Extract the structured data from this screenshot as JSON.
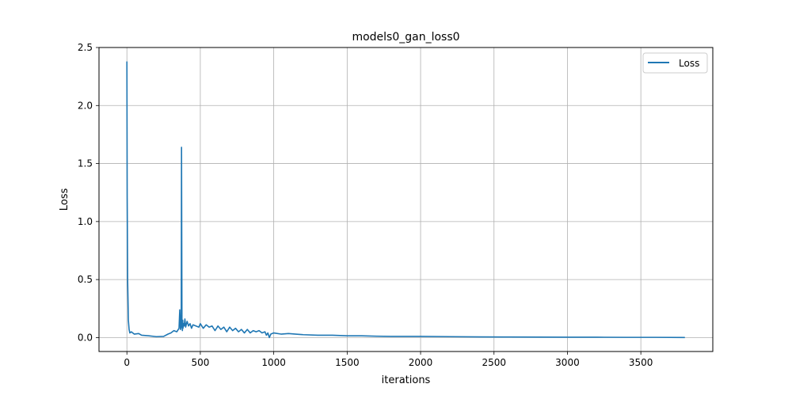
{
  "chart_data": {
    "type": "line",
    "title": "models0_gan_loss0",
    "xlabel": "iterations",
    "ylabel": "Loss",
    "xlim": [
      -190,
      3990
    ],
    "ylim": [
      -0.12,
      2.5
    ],
    "xticks": [
      0,
      500,
      1000,
      1500,
      2000,
      2500,
      3000,
      3500
    ],
    "yticks": [
      0.0,
      0.5,
      1.0,
      1.5,
      2.0,
      2.5
    ],
    "xtick_labels": [
      "0",
      "500",
      "1000",
      "1500",
      "2000",
      "2500",
      "3000",
      "3500"
    ],
    "ytick_labels": [
      "0.0",
      "0.5",
      "1.0",
      "1.5",
      "2.0",
      "2.5"
    ],
    "grid": true,
    "legend_position": "top-right",
    "series": [
      {
        "name": "Loss",
        "color": "#1f77b4",
        "x": [
          0,
          2,
          5,
          10,
          15,
          20,
          30,
          50,
          80,
          100,
          150,
          200,
          250,
          280,
          300,
          320,
          340,
          355,
          360,
          365,
          370,
          372,
          375,
          378,
          380,
          382,
          385,
          390,
          395,
          400,
          410,
          420,
          430,
          440,
          450,
          470,
          490,
          500,
          520,
          540,
          560,
          580,
          600,
          620,
          640,
          660,
          680,
          700,
          720,
          740,
          760,
          780,
          800,
          820,
          840,
          860,
          880,
          900,
          920,
          940,
          950,
          960,
          970,
          980,
          1000,
          1050,
          1100,
          1150,
          1200,
          1300,
          1400,
          1500,
          1600,
          1700,
          1800,
          1900,
          2000,
          2200,
          2400,
          2600,
          2800,
          3000,
          3200,
          3400,
          3600,
          3800
        ],
        "y": [
          2.38,
          1.2,
          0.5,
          0.15,
          0.07,
          0.04,
          0.05,
          0.03,
          0.035,
          0.02,
          0.015,
          0.008,
          0.01,
          0.03,
          0.04,
          0.06,
          0.05,
          0.08,
          0.24,
          0.07,
          0.1,
          1.64,
          0.12,
          0.06,
          0.15,
          0.08,
          0.12,
          0.1,
          0.16,
          0.09,
          0.14,
          0.1,
          0.12,
          0.08,
          0.11,
          0.1,
          0.09,
          0.12,
          0.08,
          0.11,
          0.09,
          0.1,
          0.06,
          0.1,
          0.07,
          0.09,
          0.05,
          0.09,
          0.06,
          0.08,
          0.05,
          0.07,
          0.04,
          0.07,
          0.04,
          0.06,
          0.05,
          0.06,
          0.04,
          0.05,
          0.02,
          0.04,
          0.0,
          0.03,
          0.04,
          0.03,
          0.035,
          0.03,
          0.025,
          0.02,
          0.02,
          0.015,
          0.015,
          0.012,
          0.01,
          0.01,
          0.01,
          0.008,
          0.006,
          0.005,
          0.004,
          0.003,
          0.003,
          0.002,
          0.002,
          0.001
        ]
      }
    ]
  }
}
